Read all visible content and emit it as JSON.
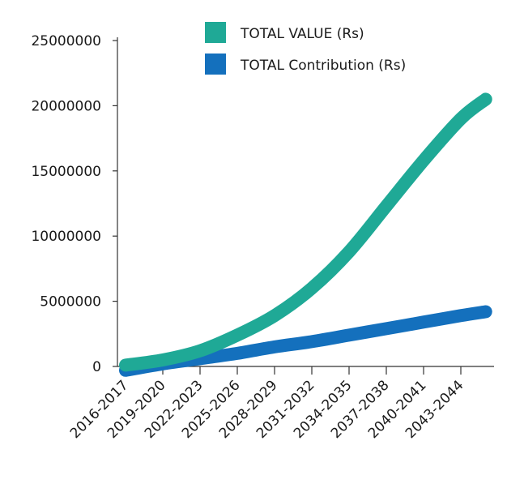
{
  "chart_data": {
    "type": "line",
    "title": "",
    "xlabel": "",
    "ylabel": "",
    "categories": [
      "2016-2017",
      "2019-2020",
      "2022-2023",
      "2025-2026",
      "2028-2029",
      "2031-2032",
      "2034-2035",
      "2037-2038",
      "2040-2041",
      "2043-2044"
    ],
    "y_ticks": [
      "0",
      "5000000",
      "10000000",
      "15000000",
      "20000000",
      "25000000"
    ],
    "ylim": [
      0,
      25000000
    ],
    "grid": false,
    "legend_position": "top-right",
    "series": [
      {
        "name": "TOTAL VALUE (Rs)",
        "color": "#1fa996",
        "x": [
          2016,
          2019,
          2022,
          2025,
          2028,
          2031,
          2034,
          2037,
          2040,
          2043,
          2045
        ],
        "values": [
          100000,
          500000,
          1200000,
          2400000,
          3900000,
          6000000,
          8800000,
          12300000,
          15800000,
          19000000,
          20500000
        ]
      },
      {
        "name": "TOTAL Contribution (Rs)",
        "color": "#1470bd",
        "x": [
          2016,
          2019,
          2022,
          2025,
          2028,
          2031,
          2034,
          2037,
          2040,
          2043,
          2045
        ],
        "values": [
          -300000,
          200000,
          600000,
          1000000,
          1500000,
          1900000,
          2400000,
          2900000,
          3400000,
          3900000,
          4200000
        ]
      }
    ]
  }
}
